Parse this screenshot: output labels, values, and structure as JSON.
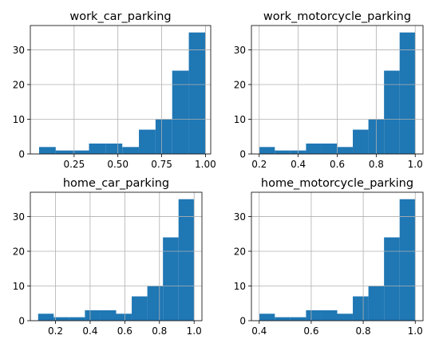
{
  "chart_data": [
    {
      "type": "bar",
      "title": "work_car_parking",
      "xlim": [
        0.0,
        1.03
      ],
      "ylim": [
        0,
        37
      ],
      "xticks": [
        0.25,
        0.5,
        0.75,
        1.0
      ],
      "xtick_labels": [
        "0.25",
        "0.50",
        "0.75",
        "1.00"
      ],
      "yticks": [
        0,
        10,
        20,
        30
      ],
      "ytick_labels": [
        "0",
        "10",
        "20",
        "30"
      ],
      "bin_edges": [
        0.05,
        0.145,
        0.24,
        0.335,
        0.43,
        0.525,
        0.62,
        0.715,
        0.81,
        0.905,
        1.0
      ],
      "counts": [
        2,
        1,
        1,
        3,
        3,
        2,
        7,
        10,
        24,
        35
      ],
      "grid": true,
      "bar_color": "#1f77b4"
    },
    {
      "type": "bar",
      "title": "work_motorcycle_parking",
      "xlim": [
        0.16,
        1.04
      ],
      "ylim": [
        0,
        37
      ],
      "xticks": [
        0.2,
        0.4,
        0.6,
        0.8,
        1.0
      ],
      "xtick_labels": [
        "0.2",
        "0.4",
        "0.6",
        "0.8",
        "1.0"
      ],
      "yticks": [
        0,
        10,
        20,
        30
      ],
      "ytick_labels": [
        "0",
        "10",
        "20",
        "30"
      ],
      "bin_edges": [
        0.2,
        0.28,
        0.36,
        0.44,
        0.52,
        0.6,
        0.68,
        0.76,
        0.84,
        0.92,
        1.0
      ],
      "counts": [
        2,
        1,
        1,
        3,
        3,
        2,
        7,
        10,
        24,
        35
      ],
      "grid": true,
      "bar_color": "#1f77b4"
    },
    {
      "type": "bar",
      "title": "home_car_parking",
      "xlim": [
        0.055,
        1.045
      ],
      "ylim": [
        0,
        37
      ],
      "xticks": [
        0.2,
        0.4,
        0.6,
        0.8,
        1.0
      ],
      "xtick_labels": [
        "0.2",
        "0.4",
        "0.6",
        "0.8",
        "1.0"
      ],
      "yticks": [
        0,
        10,
        20,
        30
      ],
      "ytick_labels": [
        "0",
        "10",
        "20",
        "30"
      ],
      "bin_edges": [
        0.1,
        0.19,
        0.28,
        0.37,
        0.46,
        0.55,
        0.64,
        0.73,
        0.82,
        0.91,
        1.0
      ],
      "counts": [
        2,
        1,
        1,
        3,
        3,
        2,
        7,
        10,
        24,
        35
      ],
      "grid": true,
      "bar_color": "#1f77b4"
    },
    {
      "type": "bar",
      "title": "home_motorcycle_parking",
      "xlim": [
        0.37,
        1.03
      ],
      "ylim": [
        0,
        37
      ],
      "xticks": [
        0.4,
        0.6,
        0.8,
        1.0
      ],
      "xtick_labels": [
        "0.4",
        "0.6",
        "0.8",
        "1.0"
      ],
      "yticks": [
        0,
        10,
        20,
        30
      ],
      "ytick_labels": [
        "0",
        "10",
        "20",
        "30"
      ],
      "bin_edges": [
        0.4,
        0.46,
        0.52,
        0.58,
        0.64,
        0.7,
        0.76,
        0.82,
        0.88,
        0.94,
        1.0
      ],
      "counts": [
        2,
        1,
        1,
        3,
        3,
        2,
        7,
        10,
        24,
        35
      ],
      "grid": true,
      "bar_color": "#1f77b4"
    }
  ]
}
